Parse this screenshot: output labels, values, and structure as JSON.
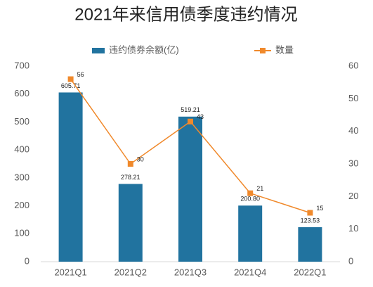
{
  "chart_data": {
    "type": "bar",
    "title": "2021年来信用债季度违约情况",
    "categories": [
      "2021Q1",
      "2021Q2",
      "2021Q3",
      "2021Q4",
      "2022Q1"
    ],
    "series": [
      {
        "name": "违约债券余额(亿)",
        "type": "bar",
        "color": "#21739f",
        "values": [
          605.71,
          278.21,
          519.21,
          200.8,
          123.53
        ],
        "value_labels": [
          "605.71",
          "278.21",
          "519.21",
          "200.80",
          "123.53"
        ]
      },
      {
        "name": "数量",
        "type": "line",
        "axis": "y2",
        "color": "#f0892b",
        "values": [
          56,
          30,
          43,
          21,
          15
        ]
      }
    ],
    "ylim": [
      0,
      700
    ],
    "yticks": [
      0,
      100,
      200,
      300,
      400,
      500,
      600,
      700
    ],
    "y2lim": [
      0,
      60
    ],
    "y2ticks": [
      0,
      10,
      20,
      30,
      40,
      50,
      60
    ],
    "grid": false,
    "legend": "top"
  }
}
